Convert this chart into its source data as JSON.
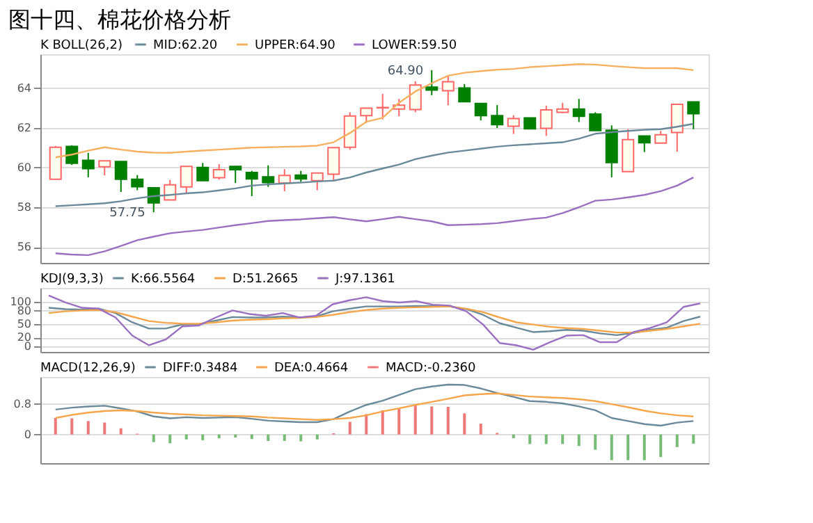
{
  "chart_data": [
    {
      "type": "candlestick",
      "title": "图十四、棉花价格分析",
      "legend_title": "K  BOLL(26,2)",
      "legend": "top left",
      "grid": "y",
      "tick_labels": "y",
      "categories": [
        null,
        null,
        null,
        null,
        null,
        null,
        null,
        null,
        null,
        null,
        null,
        null,
        null,
        null,
        null,
        null,
        null,
        null,
        null,
        null,
        null,
        null,
        null,
        null,
        null,
        null,
        null,
        null,
        null,
        null,
        null,
        null,
        null,
        null,
        null,
        null,
        null,
        null,
        null,
        null
      ],
      "ohlc": [
        [
          59.41,
          61.08,
          59.38,
          61.02
        ],
        [
          61.06,
          61.12,
          60.13,
          60.21
        ],
        [
          60.36,
          60.74,
          59.51,
          59.94
        ],
        [
          60.04,
          60.34,
          59.6,
          60.34
        ],
        [
          60.3,
          60.3,
          58.77,
          59.41
        ],
        [
          59.41,
          59.62,
          58.86,
          59.03
        ],
        [
          58.98,
          58.98,
          57.75,
          58.22
        ],
        [
          58.37,
          59.38,
          58.37,
          59.13
        ],
        [
          59.02,
          60.06,
          58.71,
          60.06
        ],
        [
          60.0,
          60.23,
          59.34,
          59.34
        ],
        [
          59.49,
          60.17,
          59.39,
          59.89
        ],
        [
          60.06,
          60.06,
          59.22,
          59.89
        ],
        [
          59.75,
          59.83,
          58.56,
          59.43
        ],
        [
          59.53,
          60.11,
          59.03,
          59.24
        ],
        [
          59.22,
          59.92,
          58.81,
          59.6
        ],
        [
          59.62,
          59.83,
          59.28,
          59.43
        ],
        [
          59.34,
          59.72,
          58.86,
          59.72
        ],
        [
          59.66,
          61.0,
          59.34,
          61.0
        ],
        [
          61.02,
          62.78,
          60.89,
          62.59
        ],
        [
          62.61,
          62.99,
          62.25,
          62.99
        ],
        [
          63.0,
          63.71,
          62.42,
          63.02
        ],
        [
          62.94,
          63.45,
          62.58,
          63.14
        ],
        [
          62.92,
          64.34,
          62.78,
          64.15
        ],
        [
          64.05,
          64.9,
          63.64,
          63.9
        ],
        [
          63.86,
          64.58,
          63.13,
          64.32
        ],
        [
          64.0,
          64.2,
          63.31,
          63.31
        ],
        [
          63.22,
          63.22,
          62.37,
          62.61
        ],
        [
          62.61,
          63.14,
          61.99,
          62.16
        ],
        [
          62.08,
          62.63,
          61.69,
          62.46
        ],
        [
          62.5,
          62.5,
          61.95,
          61.95
        ],
        [
          61.97,
          63.11,
          61.59,
          62.9
        ],
        [
          62.78,
          63.26,
          62.73,
          62.94
        ],
        [
          62.94,
          63.45,
          62.29,
          62.58
        ],
        [
          62.69,
          62.78,
          61.86,
          61.86
        ],
        [
          61.88,
          62.12,
          59.51,
          60.25
        ],
        [
          59.79,
          61.93,
          59.79,
          61.4
        ],
        [
          61.59,
          61.59,
          60.78,
          61.25
        ],
        [
          61.23,
          61.84,
          61.23,
          61.65
        ],
        [
          61.76,
          63.18,
          60.8,
          63.18
        ],
        [
          63.3,
          63.3,
          61.93,
          62.71
        ]
      ],
      "colors": [
        "#ff6666",
        "#007f00",
        "#007f00",
        "#ff6666",
        "#007f00",
        "#007f00",
        "#007f00",
        "#ff6666",
        "#ff6666",
        "#007f00",
        "#ff6666",
        "#007f00",
        "#007f00",
        "#007f00",
        "#ff6666",
        "#007f00",
        "#ff6666",
        "#ff6666",
        "#ff6666",
        "#ff6666",
        "#ff6666",
        "#ff6666",
        "#ff6666",
        "#007f00",
        "#ff6666",
        "#007f00",
        "#007f00",
        "#007f00",
        "#ff6666",
        "#007f00",
        "#ff6666",
        "#ff6666",
        "#007f00",
        "#007f00",
        "#007f00",
        "#ff6666",
        "#007f00",
        "#ff6666",
        "#ff6666",
        "#007f00"
      ],
      "series": [
        {
          "name": "MID:62.20",
          "type": "line",
          "color": "#6a8a9a",
          "values": [
            58.05,
            58.1,
            58.15,
            58.2,
            58.3,
            58.45,
            58.56,
            58.62,
            58.7,
            58.75,
            58.85,
            58.95,
            59.09,
            59.15,
            59.2,
            59.24,
            59.3,
            59.34,
            59.5,
            59.75,
            59.95,
            60.15,
            60.42,
            60.6,
            60.75,
            60.85,
            60.95,
            61.05,
            61.12,
            61.17,
            61.22,
            61.27,
            61.45,
            61.7,
            61.78,
            61.84,
            61.9,
            61.93,
            62.05,
            62.2
          ]
        },
        {
          "name": "UPPER:64.90",
          "type": "line",
          "color": "#f5b060",
          "values": [
            60.51,
            60.65,
            60.85,
            61.02,
            60.9,
            60.8,
            60.75,
            60.74,
            60.8,
            60.85,
            60.9,
            60.95,
            61.0,
            61.02,
            61.04,
            61.06,
            61.1,
            61.27,
            61.74,
            62.3,
            62.5,
            63.26,
            63.83,
            64.24,
            64.62,
            64.77,
            64.85,
            64.92,
            64.96,
            65.05,
            65.1,
            65.15,
            65.2,
            65.18,
            65.11,
            65.05,
            65.0,
            65.0,
            65.0,
            64.9
          ]
        },
        {
          "name": "LOWER:59.50",
          "type": "line",
          "color": "#9a70c0",
          "values": [
            55.68,
            55.62,
            55.59,
            55.78,
            56.05,
            56.34,
            56.52,
            56.69,
            56.78,
            56.86,
            56.98,
            57.1,
            57.2,
            57.31,
            57.35,
            57.39,
            57.45,
            57.5,
            57.39,
            57.29,
            57.4,
            57.52,
            57.4,
            57.29,
            57.1,
            57.12,
            57.15,
            57.2,
            57.3,
            57.4,
            57.48,
            57.71,
            58.0,
            58.33,
            58.39,
            58.5,
            58.62,
            58.81,
            59.09,
            59.5
          ]
        }
      ],
      "ylim": [
        55.2,
        65.7
      ],
      "yticks": [
        56,
        58,
        60,
        62,
        64
      ],
      "annotations": [
        "57.75",
        "64.90"
      ]
    },
    {
      "type": "line",
      "legend_title": "KDJ(9,3,3)",
      "legend": "top left",
      "grid": "y",
      "tick_labels": "y",
      "categories": [
        null,
        null,
        null,
        null,
        null,
        null,
        null,
        null,
        null,
        null,
        null,
        null,
        null,
        null,
        null,
        null,
        null,
        null,
        null,
        null,
        null,
        null,
        null,
        null,
        null,
        null,
        null,
        null,
        null,
        null,
        null,
        null,
        null,
        null,
        null,
        null,
        null,
        null,
        null,
        null
      ],
      "series": [
        {
          "name": "K:66.5564",
          "color": "#6a8a9a",
          "values": [
            87,
            84,
            83,
            85,
            75,
            54,
            40,
            40,
            49,
            50,
            58,
            66,
            65,
            65,
            67,
            65,
            67,
            79,
            85,
            90,
            90,
            90,
            91,
            91,
            90,
            84,
            71,
            52,
            42,
            32,
            34,
            37,
            35,
            29,
            25,
            30,
            37,
            42,
            57,
            67
          ]
        },
        {
          "name": "D:51.2665",
          "color": "#f5a54a",
          "values": [
            75,
            79,
            81,
            82,
            77,
            67,
            57,
            53,
            51,
            51,
            54,
            58,
            60,
            61,
            63,
            64,
            66,
            71,
            77,
            82,
            85,
            87,
            88,
            89,
            90,
            85,
            77,
            65,
            54,
            49,
            44,
            41,
            39,
            35,
            31,
            31,
            35,
            39,
            45,
            51
          ]
        },
        {
          "name": "J:97.1361",
          "color": "#9a70c0",
          "values": [
            115,
            99,
            87,
            85,
            65,
            24,
            2,
            15,
            45,
            47,
            65,
            81,
            73,
            69,
            75,
            65,
            69,
            95,
            104,
            111,
            102,
            99,
            102,
            94,
            92,
            79,
            49,
            7,
            2,
            -8,
            9,
            24,
            25,
            9,
            9,
            32,
            41,
            54,
            89,
            97
          ]
        }
      ],
      "ylim": [
        -13,
        132
      ],
      "yticks": [
        0,
        20,
        50,
        80,
        100
      ]
    },
    {
      "type": "line",
      "legend_title": "MACD(12,26,9)",
      "legend": "top left",
      "grid": "y",
      "tick_labels": "y",
      "categories": [
        null,
        null,
        null,
        null,
        null,
        null,
        null,
        null,
        null,
        null,
        null,
        null,
        null,
        null,
        null,
        null,
        null,
        null,
        null,
        null,
        null,
        null,
        null,
        null,
        null,
        null,
        null,
        null,
        null,
        null,
        null,
        null,
        null,
        null,
        null,
        null,
        null,
        null,
        null,
        null
      ],
      "series": [
        {
          "name": "DIFF:0.3484",
          "type": "line",
          "color": "#6a8a9a",
          "values": [
            0.65,
            0.7,
            0.73,
            0.75,
            0.68,
            0.6,
            0.47,
            0.42,
            0.45,
            0.43,
            0.44,
            0.45,
            0.41,
            0.36,
            0.34,
            0.32,
            0.32,
            0.4,
            0.6,
            0.77,
            0.88,
            1.03,
            1.18,
            1.25,
            1.3,
            1.29,
            1.2,
            1.08,
            0.98,
            0.87,
            0.85,
            0.81,
            0.73,
            0.63,
            0.43,
            0.35,
            0.27,
            0.23,
            0.31,
            0.35
          ]
        },
        {
          "name": "DEA:0.4664",
          "type": "line",
          "color": "#f5a54a",
          "values": [
            0.43,
            0.51,
            0.57,
            0.61,
            0.63,
            0.61,
            0.57,
            0.54,
            0.52,
            0.5,
            0.49,
            0.48,
            0.47,
            0.44,
            0.42,
            0.4,
            0.38,
            0.4,
            0.43,
            0.5,
            0.6,
            0.68,
            0.77,
            0.85,
            0.93,
            1.02,
            1.05,
            1.07,
            1.03,
            0.99,
            0.97,
            0.95,
            0.92,
            0.87,
            0.79,
            0.71,
            0.62,
            0.55,
            0.5,
            0.47
          ]
        },
        {
          "name": "MACD:-0.2360",
          "type": "bar",
          "values": [
            0.43,
            0.42,
            0.35,
            0.31,
            0.16,
            0.02,
            -0.2,
            -0.23,
            -0.13,
            -0.15,
            -0.1,
            -0.08,
            -0.12,
            -0.17,
            -0.17,
            -0.18,
            -0.13,
            0.03,
            0.33,
            0.53,
            0.63,
            0.67,
            0.76,
            0.73,
            0.72,
            0.55,
            0.28,
            0.04,
            -0.1,
            -0.25,
            -0.25,
            -0.25,
            -0.3,
            -0.4,
            -0.67,
            -0.67,
            -0.67,
            -0.59,
            -0.33,
            -0.24
          ],
          "colors": [
            "#ee7777",
            "#ee7777",
            "#ee7777",
            "#ee7777",
            "#ee7777",
            "#ee7777",
            "#77bb77",
            "#77bb77",
            "#77bb77",
            "#77bb77",
            "#77bb77",
            "#77bb77",
            "#77bb77",
            "#77bb77",
            "#77bb77",
            "#77bb77",
            "#77bb77",
            "#ee7777",
            "#ee7777",
            "#ee7777",
            "#ee7777",
            "#ee7777",
            "#ee7777",
            "#ee7777",
            "#ee7777",
            "#ee7777",
            "#ee7777",
            "#ee7777",
            "#77bb77",
            "#77bb77",
            "#77bb77",
            "#77bb77",
            "#77bb77",
            "#77bb77",
            "#77bb77",
            "#77bb77",
            "#77bb77",
            "#77bb77",
            "#77bb77",
            "#77bb77"
          ]
        }
      ],
      "ylim": [
        -0.75,
        1.5
      ],
      "yticks": [
        0,
        0.8
      ]
    }
  ]
}
